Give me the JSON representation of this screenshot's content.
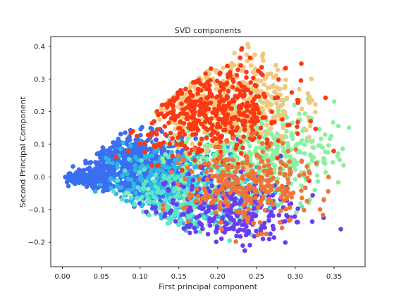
{
  "chart_data": {
    "type": "scatter",
    "title": "SVD components",
    "xlabel": "First principal component",
    "ylabel": "Second Principal Component",
    "xlim": [
      -0.015,
      0.39
    ],
    "ylim": [
      -0.275,
      0.43
    ],
    "xticks": [
      0.0,
      0.05,
      0.1,
      0.15,
      0.2,
      0.25,
      0.3,
      0.35
    ],
    "xtick_labels": [
      "0.00",
      "0.05",
      "0.10",
      "0.15",
      "0.20",
      "0.25",
      "0.30",
      "0.35"
    ],
    "yticks": [
      -0.2,
      -0.1,
      0.0,
      0.1,
      0.2,
      0.3,
      0.4
    ],
    "ytick_labels": [
      "−0.2",
      "−0.1",
      "0.0",
      "0.1",
      "0.2",
      "0.3",
      "0.4"
    ],
    "grid": false,
    "legend": "none",
    "clusters": [
      {
        "color": "#3a6ff0",
        "center": [
          0.09,
          0.03
        ],
        "spread": [
          0.04,
          0.05
        ],
        "count": 700
      },
      {
        "color": "#2eb6e6",
        "center": [
          0.15,
          -0.03
        ],
        "spread": [
          0.045,
          0.06
        ],
        "count": 420
      },
      {
        "color": "#5ce6c8",
        "center": [
          0.16,
          -0.07
        ],
        "spread": [
          0.05,
          0.05
        ],
        "count": 250
      },
      {
        "color": "#8cf0a0",
        "center": [
          0.25,
          0.07
        ],
        "spread": [
          0.05,
          0.08
        ],
        "count": 500
      },
      {
        "color": "#6a3df0",
        "center": [
          0.21,
          -0.1
        ],
        "spread": [
          0.045,
          0.06
        ],
        "count": 280
      },
      {
        "color": "#f3c77b",
        "center": [
          0.21,
          0.24
        ],
        "spread": [
          0.045,
          0.07
        ],
        "count": 420
      },
      {
        "color": "#fb3a15",
        "center": [
          0.19,
          0.2
        ],
        "spread": [
          0.05,
          0.07
        ],
        "count": 460
      },
      {
        "color": "#f0743a",
        "center": [
          0.24,
          -0.03
        ],
        "spread": [
          0.04,
          0.06
        ],
        "count": 300
      }
    ]
  }
}
